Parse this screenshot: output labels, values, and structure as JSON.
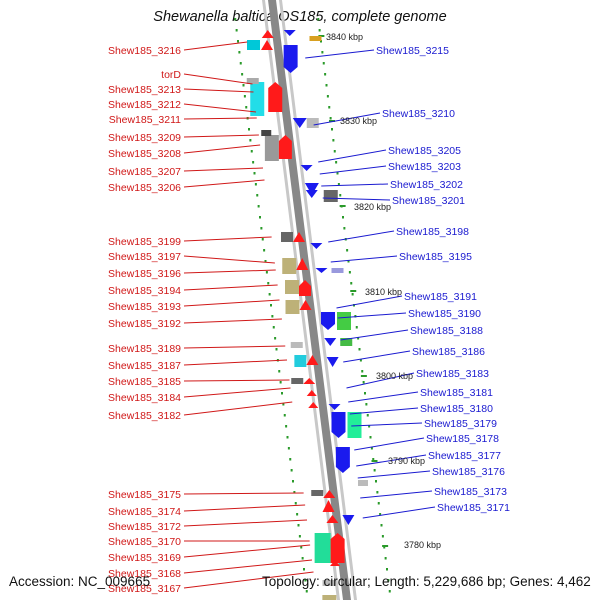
{
  "title": "Shewanella baltica OS185, complete genome",
  "footer": {
    "accession": "Accession: NC_009665",
    "topology": "Topology: circular; Length: 5,229,686 bp; Genes: 4,462"
  },
  "colors": {
    "left_label": "#d01818",
    "right_label": "#1a1ad0",
    "tick": "#2a9a2a",
    "backbone": "#888888",
    "forward_gene": "#ff1a1a",
    "reverse_gene": "#1a1aee"
  },
  "scale_labels": [
    "3840 kbp",
    "3830 kbp",
    "3820 kbp",
    "3810 kbp",
    "3800 kbp",
    "3790 kbp",
    "3780 kbp"
  ],
  "left_labels": [
    "Shew185_3216",
    "torD",
    "Shew185_3213",
    "Shew185_3212",
    "Shew185_3211",
    "Shew185_3209",
    "Shew185_3208",
    "Shew185_3207",
    "Shew185_3206",
    "Shew185_3199",
    "Shew185_3197",
    "Shew185_3196",
    "Shew185_3194",
    "Shew185_3193",
    "Shew185_3192",
    "Shew185_3189",
    "Shew185_3187",
    "Shew185_3185",
    "Shew185_3184",
    "Shew185_3182",
    "Shew185_3175",
    "Shew185_3174",
    "Shew185_3172",
    "Shew185_3170",
    "Shew185_3169",
    "Shew185_3168",
    "Shew185_3167"
  ],
  "right_labels": [
    "Shew185_3215",
    "Shew185_3210",
    "Shew185_3205",
    "Shew185_3203",
    "Shew185_3202",
    "Shew185_3201",
    "Shew185_3198",
    "Shew185_3195",
    "Shew185_3191",
    "Shew185_3190",
    "Shew185_3188",
    "Shew185_3186",
    "Shew185_3183",
    "Shew185_3181",
    "Shew185_3180",
    "Shew185_3179",
    "Shew185_3178",
    "Shew185_3177",
    "Shew185_3176",
    "Shew185_3173",
    "Shew185_3171"
  ]
}
